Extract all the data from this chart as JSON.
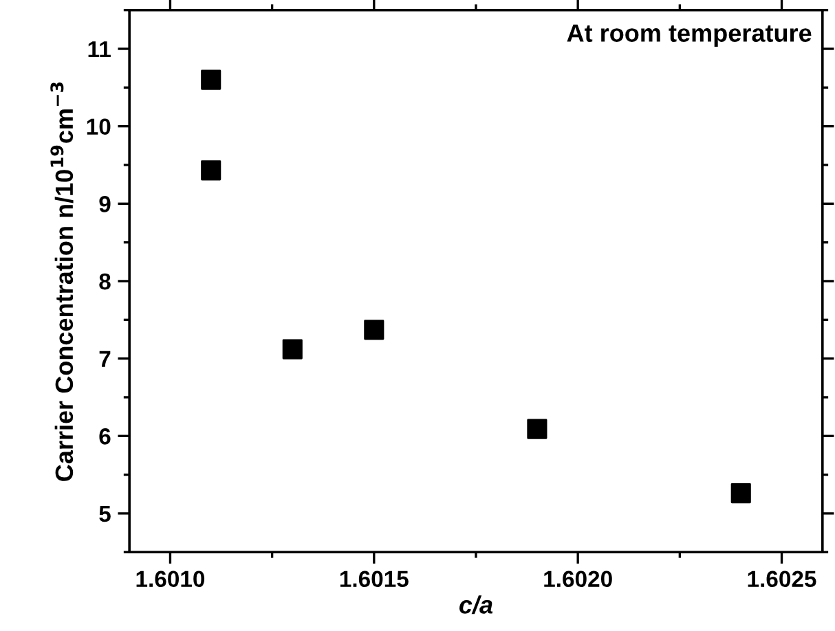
{
  "chart_data": {
    "type": "scatter",
    "xlabel": "c/a",
    "ylabel": "Carrier Concentration n/10$^{19}$cm$^{−3}$",
    "annotations": [
      "At room temperature"
    ],
    "x": [
      1.6011,
      1.6011,
      1.6013,
      1.6015,
      1.6019,
      1.6024
    ],
    "series": [
      {
        "color": "#000000",
        "values": [
          10.6,
          9.43,
          7.12,
          7.37,
          6.09,
          5.26
        ]
      }
    ],
    "marker": "square",
    "grid": false,
    "legend": false,
    "xlim": [
      1.6009,
      1.6026
    ],
    "xticks": [
      {
        "value": 1.601,
        "label": "1.6010"
      },
      {
        "value": 1.6015,
        "label": "1.6015"
      },
      {
        "value": 1.602,
        "label": "1.6020"
      },
      {
        "value": 1.6025,
        "label": "1.6025"
      }
    ],
    "ylim": [
      4.5,
      11.5
    ],
    "yticks": [
      5,
      6,
      7,
      8,
      9,
      10,
      11
    ]
  }
}
